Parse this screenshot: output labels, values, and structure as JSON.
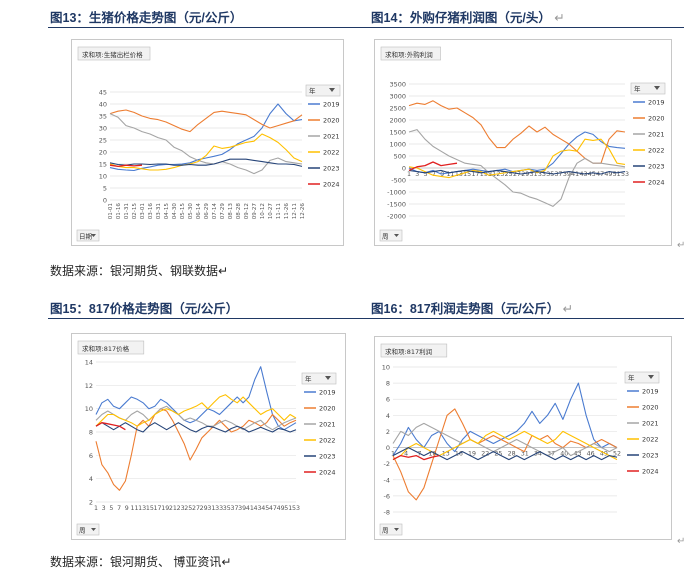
{
  "headings": {
    "h13": "图13：生猪价格走势图（元/公斤）",
    "h14": "图14：外购仔猪利润图（元/头）",
    "h15": "图15：817价格走势图（元/公斤）",
    "h16": "图16：817利润走势图（元/公斤）",
    "ret": "↵"
  },
  "sources": {
    "top": "数据来源：银河期货、钢联数据↵",
    "bottom": "数据来源：银河期货、 博亚资讯↵"
  },
  "colors": {
    "2019": "#4a7bd0",
    "2020": "#ed7d31",
    "2021": "#a5a5a5",
    "2022": "#ffc000",
    "2023": "#264478",
    "2024": "#e02020"
  },
  "chart_data": [
    {
      "id": "c13",
      "type": "line",
      "field_tag": "求和项:生猪出栏价格",
      "filter_label": "日期",
      "legend_title": "年",
      "legend": [
        "2019",
        "2020",
        "2021",
        "2022",
        "2023",
        "2024"
      ],
      "ylim": [
        0,
        45
      ],
      "yticks": [
        0,
        5,
        10,
        15,
        20,
        25,
        30,
        35,
        40,
        45
      ],
      "xticks": [
        "01-01",
        "01-16",
        "01-31",
        "02-15",
        "03-01",
        "03-16",
        "03-31",
        "04-15",
        "04-30",
        "05-15",
        "05-30",
        "06-14",
        "06-29",
        "07-14",
        "07-29",
        "08-13",
        "08-28",
        "09-12",
        "09-27",
        "10-12",
        "10-27",
        "11-11",
        "11-26",
        "12-11",
        "12-26"
      ],
      "series": [
        {
          "name": "2019",
          "values": [
            13.5,
            12.8,
            12.5,
            12.3,
            13.2,
            13.8,
            14.5,
            14.8,
            14.8,
            15.0,
            15.5,
            16.8,
            17.5,
            18.2,
            19.0,
            21.0,
            23.5,
            25.0,
            26.5,
            30.0,
            36.0,
            40.0,
            36.0,
            33.0,
            33.5
          ]
        },
        {
          "name": "2020",
          "values": [
            36.0,
            37.0,
            37.5,
            36.5,
            35.0,
            34.0,
            33.5,
            32.5,
            31.0,
            29.5,
            28.5,
            31.5,
            34.0,
            36.5,
            37.0,
            36.5,
            36.0,
            35.5,
            33.5,
            31.5,
            30.0,
            31.0,
            32.0,
            33.0,
            35.5
          ]
        },
        {
          "name": "2021",
          "values": [
            36.0,
            34.5,
            31.0,
            30.0,
            28.5,
            27.5,
            26.0,
            25.0,
            22.0,
            20.5,
            18.0,
            16.5,
            15.5,
            15.0,
            16.0,
            15.0,
            13.5,
            12.5,
            11.0,
            12.5,
            16.5,
            17.5,
            16.0,
            15.5,
            15.0
          ]
        },
        {
          "name": "2022",
          "values": [
            15.0,
            14.0,
            13.5,
            13.5,
            13.0,
            12.5,
            12.5,
            12.8,
            13.5,
            14.5,
            15.0,
            16.0,
            18.5,
            22.5,
            21.5,
            22.0,
            23.0,
            24.0,
            24.5,
            27.5,
            26.0,
            24.0,
            21.0,
            17.5,
            16.0
          ]
        },
        {
          "name": "2023",
          "values": [
            15.5,
            14.8,
            14.5,
            15.0,
            15.0,
            14.8,
            15.0,
            15.0,
            14.5,
            14.5,
            14.8,
            14.5,
            14.5,
            15.0,
            16.0,
            17.0,
            17.0,
            17.0,
            16.5,
            16.0,
            15.5,
            15.0,
            15.0,
            14.8,
            14.0
          ]
        },
        {
          "name": "2024",
          "values": [
            14.5,
            14.0,
            14.5,
            14.2,
            14.5
          ]
        }
      ]
    },
    {
      "id": "c14",
      "type": "line",
      "field_tag": "求和项:外购利润",
      "filter_label": "周",
      "legend_title": "年",
      "legend": [
        "2019",
        "2020",
        "2021",
        "2022",
        "2023",
        "2024"
      ],
      "ylim": [
        -2000,
        3500
      ],
      "yticks": [
        -2000,
        -1500,
        -1000,
        -500,
        0,
        500,
        1000,
        1500,
        2000,
        2500,
        3000,
        3500
      ],
      "xticks": [
        "1",
        "3",
        "5",
        "7",
        "9",
        "11",
        "13",
        "15",
        "17",
        "19",
        "21",
        "23",
        "25",
        "27",
        "29",
        "31",
        "33",
        "35",
        "37",
        "39",
        "41",
        "43",
        "45",
        "47",
        "49",
        "51",
        "53"
      ],
      "series": [
        {
          "name": "2019",
          "values": [
            0,
            -150,
            -200,
            -100,
            -250,
            -200,
            -150,
            -100,
            -50,
            -100,
            -150,
            -100,
            -50,
            -150,
            -100,
            -50,
            -100,
            -50,
            200,
            600,
            1000,
            1300,
            1500,
            1400,
            1100,
            900,
            850,
            820
          ]
        },
        {
          "name": "2020",
          "values": [
            2600,
            2700,
            2650,
            2800,
            2600,
            2450,
            2500,
            2300,
            2100,
            1800,
            1250,
            850,
            850,
            1200,
            1450,
            1750,
            1500,
            1700,
            1400,
            1200,
            1000,
            700,
            400,
            200,
            200,
            1200,
            1550,
            1500
          ]
        },
        {
          "name": "2021",
          "values": [
            1500,
            1600,
            1200,
            900,
            700,
            500,
            350,
            200,
            150,
            100,
            -200,
            -450,
            -700,
            -1000,
            -1050,
            -1200,
            -1300,
            -1450,
            -1600,
            -1300,
            -400,
            200,
            400,
            200,
            200,
            150,
            100,
            50
          ]
        },
        {
          "name": "2022",
          "values": [
            50,
            0,
            -150,
            -300,
            -350,
            -400,
            -300,
            -200,
            -100,
            -150,
            -300,
            -250,
            -200,
            -150,
            -100,
            -50,
            -200,
            -100,
            500,
            700,
            750,
            700,
            1200,
            1150,
            1200,
            800,
            200,
            150
          ]
        },
        {
          "name": "2023",
          "values": [
            -100,
            -150,
            -200,
            -150,
            -100,
            -200,
            -150,
            -100,
            -150,
            -200,
            -150,
            -100,
            -150,
            -200,
            -250,
            -200,
            -150,
            -200,
            -250,
            -200,
            -150,
            -200,
            -250,
            -200,
            -250,
            -150,
            -200,
            -150
          ]
        },
        {
          "name": "2024",
          "values": [
            -100,
            50,
            100,
            250,
            100,
            150,
            200
          ]
        }
      ]
    },
    {
      "id": "c15",
      "type": "line",
      "field_tag": "求和项:817价格",
      "filter_label": "周",
      "legend_title": "年",
      "legend": [
        "2019",
        "2020",
        "2021",
        "2022",
        "2023",
        "2024"
      ],
      "ylim": [
        2,
        14
      ],
      "yticks": [
        2,
        4,
        6,
        8,
        10,
        12,
        14
      ],
      "xticks": [
        "1",
        "3",
        "5",
        "7",
        "9",
        "11",
        "13",
        "15",
        "17",
        "19",
        "21",
        "23",
        "25",
        "27",
        "29",
        "31",
        "33",
        "35",
        "37",
        "39",
        "41",
        "43",
        "45",
        "47",
        "49",
        "51",
        "53"
      ],
      "series": [
        {
          "name": "2019",
          "values": [
            9.5,
            10.5,
            10.8,
            10.2,
            10.0,
            10.5,
            11.0,
            10.8,
            10.5,
            10.0,
            10.2,
            10.8,
            10.5,
            10.0,
            9.5,
            9.0,
            8.8,
            9.0,
            9.5,
            10.0,
            9.8,
            9.5,
            10.0,
            10.5,
            11.0,
            10.5,
            11.0,
            12.5,
            13.6,
            11.5,
            9.5,
            8.5,
            8.2,
            8.5,
            8.8
          ]
        },
        {
          "name": "2020",
          "values": [
            7.2,
            5.2,
            4.5,
            3.5,
            3.0,
            3.8,
            6.0,
            8.5,
            9.0,
            8.5,
            9.5,
            10.0,
            9.8,
            9.0,
            8.0,
            7.0,
            5.6,
            6.5,
            7.5,
            8.0,
            8.5,
            9.0,
            8.5,
            8.0,
            8.2,
            8.5,
            9.0,
            8.8,
            8.5,
            8.8,
            9.5,
            9.0,
            8.5,
            8.8,
            9.0
          ]
        },
        {
          "name": "2021",
          "values": [
            9.0,
            9.5,
            9.8,
            9.5,
            9.2,
            9.0,
            9.5,
            9.8,
            9.5,
            9.0,
            9.5,
            10.0,
            10.2,
            9.8,
            9.5,
            9.0,
            9.2,
            9.0,
            8.8,
            8.5,
            8.5,
            8.8,
            9.0,
            8.8,
            8.5,
            8.2,
            8.5,
            8.8,
            9.0,
            8.5,
            8.2,
            8.5,
            8.8,
            9.0,
            9.2
          ]
        },
        {
          "name": "2022",
          "values": [
            8.5,
            9.0,
            9.5,
            9.5,
            9.2,
            9.0,
            8.8,
            8.5,
            8.8,
            9.0,
            9.5,
            9.8,
            10.0,
            9.8,
            9.5,
            9.8,
            10.0,
            10.2,
            10.5,
            10.0,
            10.5,
            11.0,
            11.2,
            10.8,
            10.5,
            11.0,
            10.5,
            10.0,
            9.5,
            9.8,
            10.0,
            9.5,
            9.0,
            9.5,
            9.2
          ]
        },
        {
          "name": "2023",
          "values": [
            8.5,
            8.8,
            8.5,
            8.2,
            8.5,
            8.8,
            8.5,
            8.2,
            8.0,
            8.5,
            8.8,
            8.5,
            8.2,
            8.5,
            8.8,
            8.5,
            8.2,
            8.0,
            8.3,
            8.5,
            8.4,
            8.2,
            8.0,
            8.3,
            8.5,
            8.3,
            8.0,
            8.2,
            8.4,
            8.2,
            8.0,
            8.3,
            8.2,
            8.0,
            8.2
          ]
        },
        {
          "name": "2024",
          "values": [
            8.5,
            8.8,
            8.7,
            8.6,
            8.5,
            8.2
          ]
        }
      ]
    },
    {
      "id": "c16",
      "type": "line",
      "field_tag": "求和项:817利润",
      "filter_label": "周",
      "legend_title": "年",
      "legend": [
        "2019",
        "2020",
        "2021",
        "2022",
        "2023",
        "2024"
      ],
      "ylim": [
        -8,
        10
      ],
      "yticks": [
        -8,
        -6,
        -4,
        -2,
        0,
        2,
        4,
        6,
        8,
        10
      ],
      "xticks": [
        "1",
        "4",
        "7",
        "10",
        "13",
        "16",
        "19",
        "22",
        "25",
        "28",
        "31",
        "34",
        "37",
        "40",
        "43",
        "46",
        "49",
        "52"
      ],
      "series": [
        {
          "name": "2019",
          "values": [
            -1.0,
            0.5,
            2.5,
            1.0,
            0.0,
            1.5,
            2.0,
            0.5,
            -0.5,
            1.0,
            2.0,
            1.5,
            1.0,
            0.5,
            1.0,
            1.5,
            2.0,
            3.0,
            4.5,
            3.0,
            4.0,
            5.5,
            3.5,
            6.0,
            8.0,
            4.0,
            1.0,
            0.0,
            0.5,
            0.0
          ]
        },
        {
          "name": "2020",
          "values": [
            -1.0,
            -3.0,
            -5.5,
            -6.5,
            -5.0,
            -2.0,
            1.0,
            4.0,
            4.8,
            3.0,
            1.0,
            0.5,
            1.0,
            1.5,
            1.0,
            0.5,
            0.0,
            -0.5,
            1.5,
            1.0,
            1.5,
            0.5,
            0.0,
            0.8,
            0.5,
            0.0,
            0.5,
            1.0,
            0.5,
            0.0
          ]
        },
        {
          "name": "2021",
          "values": [
            0.5,
            2.0,
            1.5,
            2.5,
            3.0,
            2.5,
            2.0,
            1.5,
            1.0,
            0.5,
            1.0,
            0.5,
            0.0,
            -0.5,
            0.0,
            0.5,
            1.0,
            0.5,
            0.0,
            -0.5,
            -1.0,
            -0.5,
            0.0,
            -1.0,
            -0.5,
            0.0,
            0.5,
            0.0,
            -0.5,
            0.0
          ]
        },
        {
          "name": "2022",
          "values": [
            -1.5,
            -1.0,
            0.0,
            0.5,
            0.0,
            -0.5,
            -1.0,
            -0.5,
            0.0,
            0.5,
            1.0,
            0.5,
            1.5,
            2.0,
            1.5,
            1.0,
            1.5,
            2.0,
            1.5,
            1.0,
            0.5,
            1.0,
            2.0,
            1.5,
            1.0,
            0.5,
            0.0,
            -0.5,
            -1.0,
            -1.5
          ]
        },
        {
          "name": "2023",
          "values": [
            -1.0,
            -0.5,
            0.0,
            -0.5,
            -1.0,
            -0.5,
            -1.0,
            -1.5,
            -1.0,
            -0.5,
            -1.0,
            -1.5,
            -1.0,
            -0.5,
            -1.0,
            -1.5,
            -1.0,
            -1.5,
            -1.0,
            -0.5,
            -1.0,
            -1.5,
            -1.0,
            -1.5,
            -1.0,
            -1.5,
            -1.0,
            -1.5,
            -1.0,
            -1.2
          ]
        },
        {
          "name": "2024",
          "values": [
            -1.5,
            -1.0,
            -1.2,
            -1.0,
            -1.5,
            -1.2,
            -1.0
          ]
        }
      ]
    }
  ]
}
